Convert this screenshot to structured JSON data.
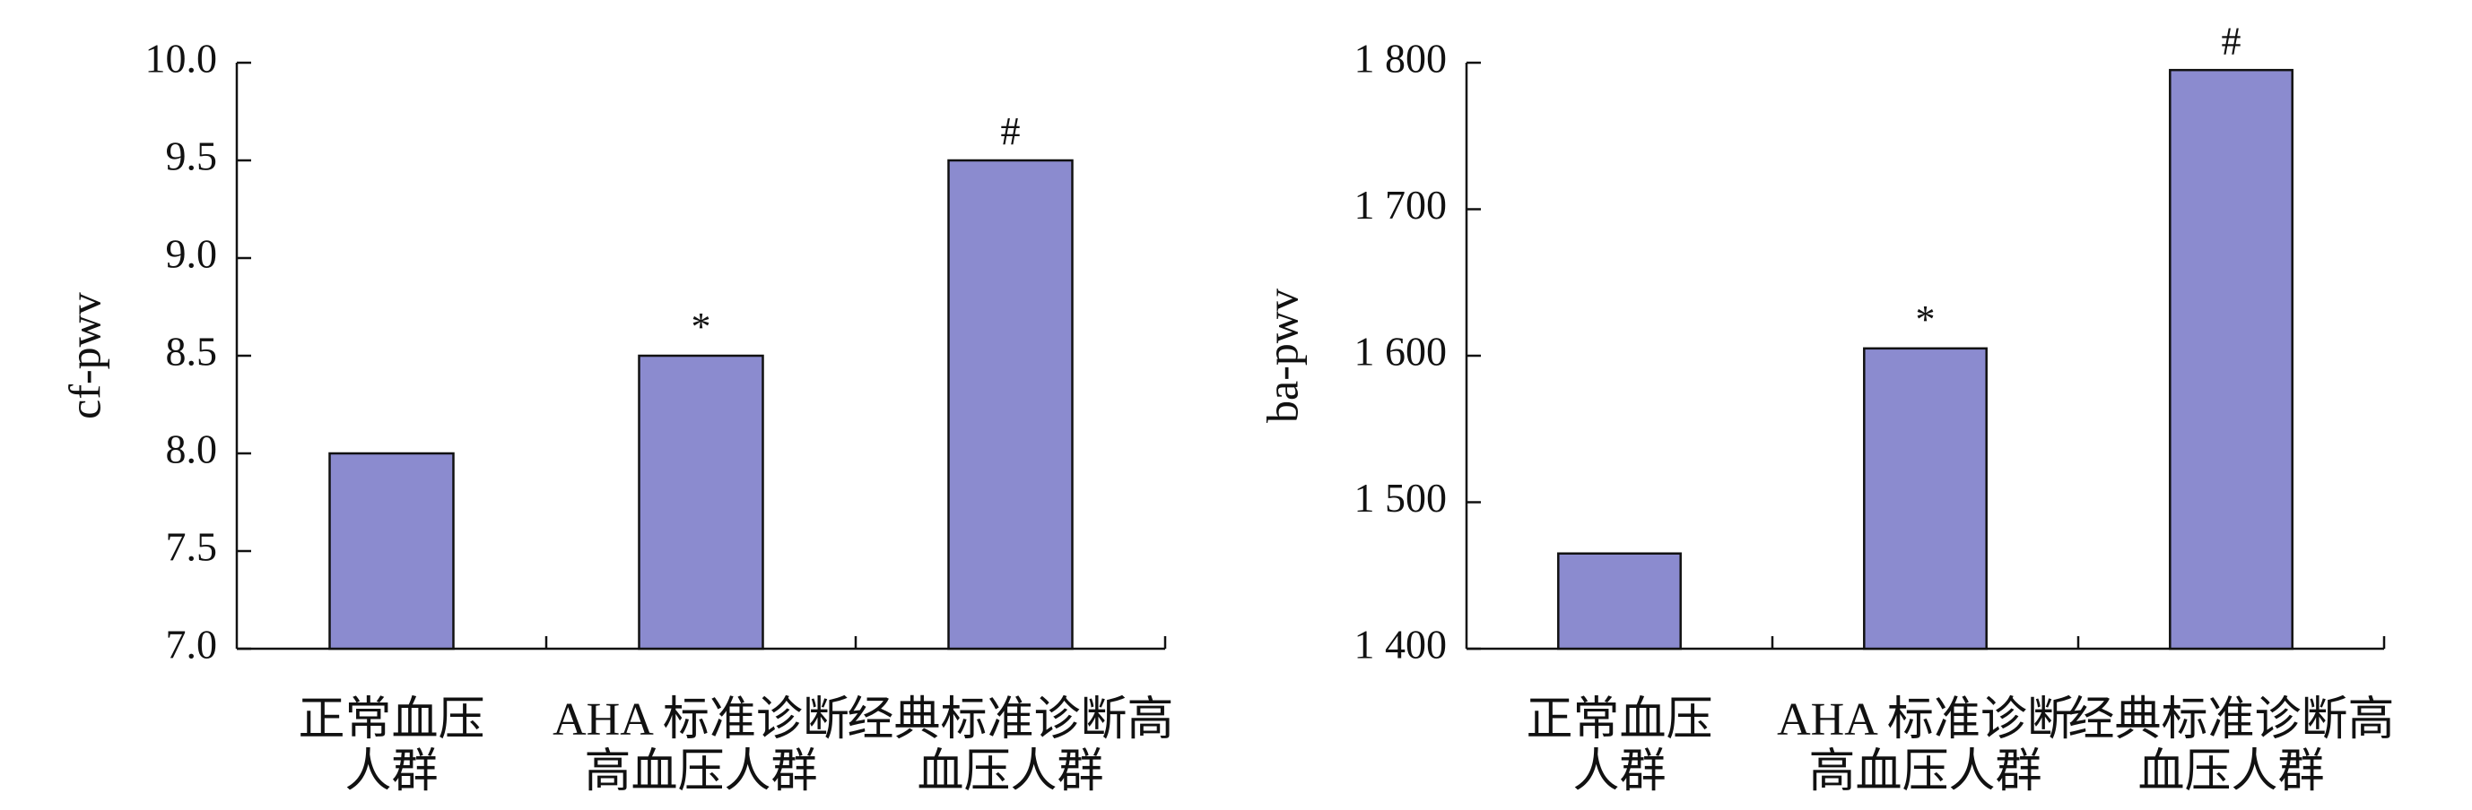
{
  "chart_data": [
    {
      "type": "bar",
      "y_label": "cf-pwv",
      "categories": [
        [
          "正常血压",
          "人群"
        ],
        [
          "AHA 标准诊断",
          "高血压人群"
        ],
        [
          "经典标准诊断高",
          "血压人群"
        ]
      ],
      "values": [
        8.0,
        8.5,
        9.5
      ],
      "markers": [
        null,
        "*",
        "#"
      ],
      "color": "#8b8bcf",
      "ylim": [
        7,
        10
      ],
      "yticks": [
        {
          "value": 7,
          "label": "7.0"
        },
        7.5,
        {
          "value": 8,
          "label": "8.0"
        },
        8.5,
        {
          "value": 9,
          "label": "9.0"
        },
        9.5,
        {
          "value": 10,
          "label": "10.0"
        }
      ]
    },
    {
      "type": "bar",
      "y_label": "ba-pwv",
      "categories": [
        [
          "正常血压",
          "人群"
        ],
        [
          "AHA 标准诊断",
          "高血压人群"
        ],
        [
          "经典标准诊断高",
          "血压人群"
        ]
      ],
      "values": [
        1465,
        1605,
        1795
      ],
      "markers": [
        null,
        "*",
        "#"
      ],
      "color": "#8b8bcf",
      "ylim": [
        1400,
        1800
      ],
      "yticks": [
        {
          "value": 1400,
          "label": "1 400"
        },
        {
          "value": 1500,
          "label": "1 500"
        },
        {
          "value": 1600,
          "label": "1 600"
        },
        {
          "value": 1700,
          "label": "1 700"
        },
        {
          "value": 1800,
          "label": "1 800"
        }
      ]
    }
  ]
}
